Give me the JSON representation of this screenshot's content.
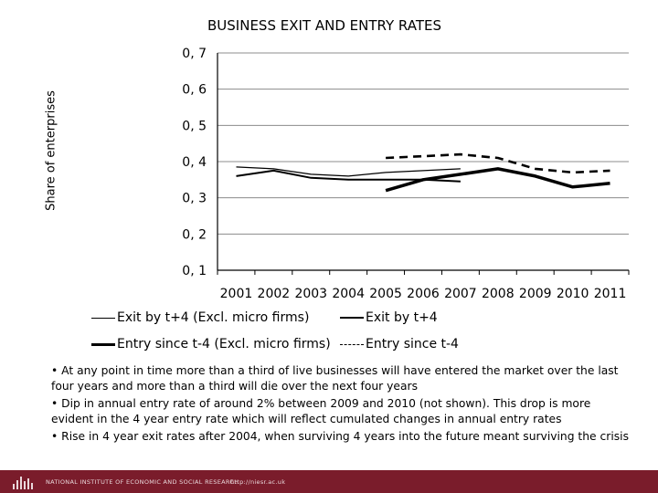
{
  "chart_data": {
    "type": "line",
    "title": "BUSINESS EXIT AND ENTRY RATES",
    "ylabel": "Share of enterprises",
    "xlabel": "",
    "ylim": [
      0.1,
      0.7
    ],
    "yticks": [
      0.1,
      0.2,
      0.3,
      0.4,
      0.5,
      0.6,
      0.7
    ],
    "ytick_labels": [
      "0, 1",
      "0, 2",
      "0, 3",
      "0, 4",
      "0, 5",
      "0, 6",
      "0, 7"
    ],
    "categories": [
      "2001",
      "2002",
      "2003",
      "2004",
      "2005",
      "2006",
      "2007",
      "2008",
      "2009",
      "2010",
      "2011"
    ],
    "series": [
      {
        "name": "Exit by t+4 (Excl. micro firms)",
        "style": "thin",
        "values": [
          0.385,
          0.38,
          0.365,
          0.36,
          0.37,
          0.375,
          0.38,
          null,
          null,
          null,
          null
        ]
      },
      {
        "name": "Exit by t+4",
        "style": "medium",
        "values": [
          0.36,
          0.375,
          0.355,
          0.35,
          0.35,
          0.35,
          0.345,
          null,
          null,
          null,
          null
        ]
      },
      {
        "name": "Entry since t-4 (Excl. micro firms)",
        "style": "thick",
        "values": [
          null,
          null,
          null,
          null,
          0.32,
          0.35,
          0.365,
          0.38,
          0.36,
          0.33,
          0.34
        ]
      },
      {
        "name": "Entry since t-4",
        "style": "dashed",
        "values": [
          null,
          null,
          null,
          null,
          0.41,
          0.415,
          0.42,
          0.41,
          0.38,
          0.37,
          0.375
        ]
      }
    ]
  },
  "notes": [
    "• At any point in time more than a third of live businesses will have entered the market over the last four years and more than a third will die over the next four years",
    "• Dip in annual entry rate of around 2% between 2009 and 2010 (not shown). This drop is more evident in the 4 year entry rate which will reflect cumulated changes in annual entry rates",
    "• Rise in 4 year exit rates after 2004, when surviving 4 years into the future meant surviving the crisis"
  ],
  "footer": {
    "institution": "NATIONAL INSTITUTE OF ECONOMIC AND SOCIAL RESEARCH",
    "url": "http://niesr.ac.uk"
  }
}
